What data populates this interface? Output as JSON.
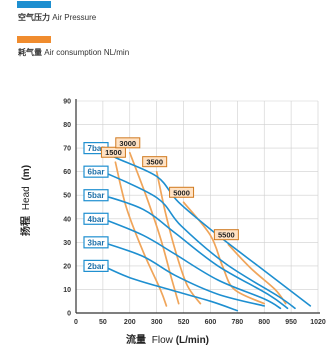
{
  "legend": {
    "pressure": {
      "cn": "空气压力",
      "en": "Air Pressure",
      "color": "#1e8fd0"
    },
    "consumption": {
      "cn": "耗气量",
      "en": "Air consumption NL/min",
      "color": "#f08c2e"
    }
  },
  "axes": {
    "x_label_cn": "流量",
    "x_label_en": "Flow",
    "x_label_unit": "(L/min)",
    "y_label_cn": "扬程",
    "y_label_en": "Head",
    "y_label_unit": "(m)"
  },
  "colors": {
    "pressure_line": "#1e8fd0",
    "consumption_line": "#f0a55a",
    "bar_label": "#1d6fa8",
    "grid": "#cfcfcf",
    "air_box_border": "#d07a20",
    "air_box_fill": "#ffe2c4"
  },
  "chart_data": {
    "type": "line",
    "xlabel": "流量 Flow(L/min)",
    "ylabel": "扬程 Head (m)",
    "x_ticks": [
      "0",
      "50",
      "200",
      "300",
      "520",
      "600",
      "780",
      "800",
      "950",
      "1020"
    ],
    "y_ticks": [
      "0",
      "10",
      "20",
      "30",
      "40",
      "50",
      "60",
      "70",
      "80",
      "90"
    ],
    "ylim": [
      0,
      90
    ],
    "grid": true,
    "series": [
      {
        "name": "7bar",
        "group": "pressure",
        "points": [
          [
            50,
            70
          ],
          [
            120,
            66
          ],
          [
            300,
            58
          ],
          [
            480,
            47
          ],
          [
            650,
            33
          ],
          [
            800,
            18
          ],
          [
            1000,
            3
          ]
        ]
      },
      {
        "name": "6bar",
        "group": "pressure",
        "points": [
          [
            50,
            60
          ],
          [
            300,
            49
          ],
          [
            500,
            37
          ],
          [
            700,
            21
          ],
          [
            880,
            7
          ],
          [
            960,
            2
          ]
        ]
      },
      {
        "name": "5bar",
        "group": "pressure",
        "points": [
          [
            50,
            50
          ],
          [
            250,
            44
          ],
          [
            450,
            34
          ],
          [
            650,
            20
          ],
          [
            820,
            8
          ],
          [
            930,
            2
          ]
        ]
      },
      {
        "name": "4bar",
        "group": "pressure",
        "points": [
          [
            50,
            40
          ],
          [
            250,
            33
          ],
          [
            450,
            25
          ],
          [
            650,
            14
          ],
          [
            800,
            6
          ],
          [
            890,
            2
          ]
        ]
      },
      {
        "name": "3bar",
        "group": "pressure",
        "points": [
          [
            50,
            30
          ],
          [
            250,
            24
          ],
          [
            450,
            16
          ],
          [
            650,
            8
          ],
          [
            800,
            3
          ]
        ]
      },
      {
        "name": "2bar",
        "group": "pressure",
        "points": [
          [
            50,
            20
          ],
          [
            200,
            15
          ],
          [
            400,
            10
          ],
          [
            600,
            5
          ],
          [
            780,
            1
          ]
        ]
      },
      {
        "name": "1500",
        "group": "consumption",
        "points": [
          [
            120,
            64
          ],
          [
            180,
            45
          ],
          [
            250,
            26
          ],
          [
            330,
            10
          ],
          [
            380,
            3
          ]
        ]
      },
      {
        "name": "3000",
        "group": "consumption",
        "points": [
          [
            200,
            68
          ],
          [
            260,
            50
          ],
          [
            330,
            32
          ],
          [
            420,
            15
          ],
          [
            480,
            4
          ]
        ]
      },
      {
        "name": "3500",
        "group": "consumption",
        "points": [
          [
            300,
            60
          ],
          [
            370,
            43
          ],
          [
            450,
            27
          ],
          [
            530,
            12
          ],
          [
            570,
            4
          ]
        ]
      },
      {
        "name": "5000",
        "group": "consumption",
        "points": [
          [
            520,
            47
          ],
          [
            600,
            33
          ],
          [
            680,
            20
          ],
          [
            760,
            10
          ],
          [
            800,
            4
          ]
        ]
      },
      {
        "name": "5500",
        "group": "consumption",
        "points": [
          [
            720,
            29
          ],
          [
            790,
            19
          ],
          [
            860,
            10
          ],
          [
            920,
            4
          ]
        ]
      }
    ],
    "pressure_labels": [
      "7bar",
      "6bar",
      "5bar",
      "4bar",
      "3bar",
      "2bar"
    ],
    "consumption_labels": [
      "1500",
      "3000",
      "3500",
      "5000",
      "5500"
    ]
  }
}
